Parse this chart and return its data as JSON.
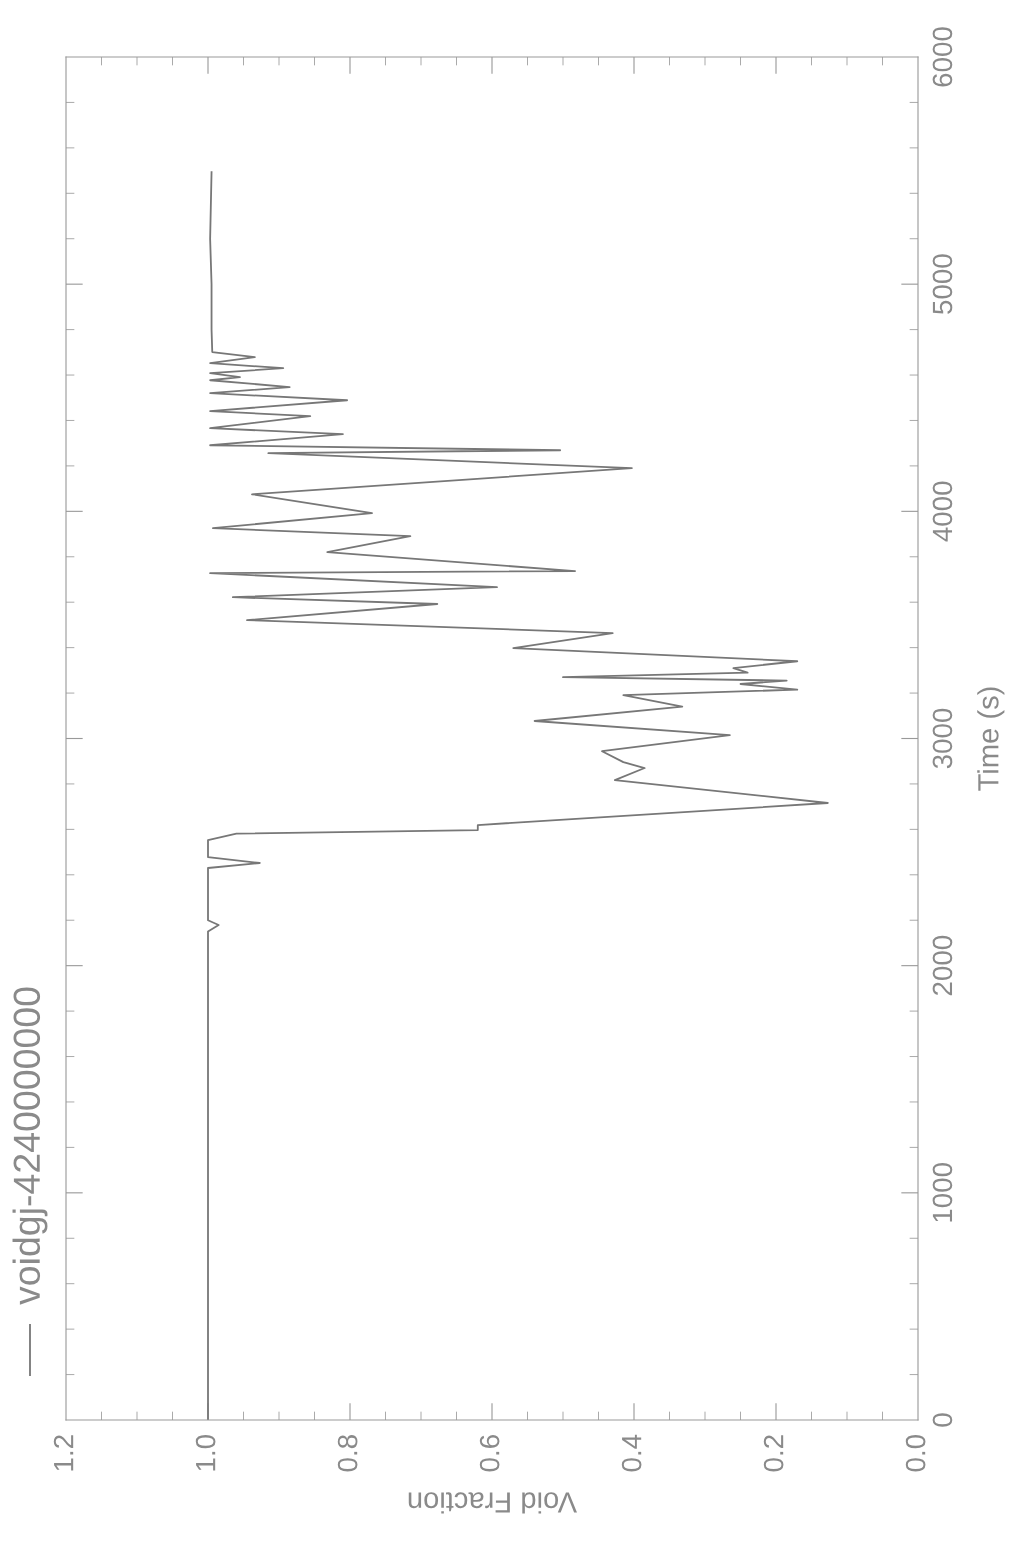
{
  "chart_data": {
    "type": "line",
    "xlabel": "Void Fraction",
    "ylabel": "Time (s)",
    "xlim": [
      1.2,
      0
    ],
    "xticks": [
      1.2,
      {
        "value": 1,
        "label": "1.0"
      },
      0.8,
      0.6,
      0.4,
      0.2,
      {
        "value": 0,
        "label": "0.0"
      }
    ],
    "ylim": [
      0,
      6000
    ],
    "yticks": [
      0,
      1000,
      2000,
      3000,
      4000,
      5000,
      6000
    ],
    "legend": "bottom left",
    "grid": false,
    "marker": "none",
    "line_style": "solid",
    "series": [
      {
        "name": "voidgj-4240000000",
        "color": "#777777",
        "values": [
          0,
          2150,
          2179,
          2200,
          2430,
          2452,
          2478,
          2553,
          2581,
          2597,
          2619,
          2716,
          2817,
          2870,
          2896,
          2944,
          3015,
          3077,
          3140,
          3191,
          3215,
          3240,
          3255,
          3270,
          3290,
          3310,
          3340,
          3398,
          3464,
          3521,
          3592,
          3622,
          3666,
          3728,
          3737,
          3820,
          3891,
          3926,
          3992,
          4075,
          4190,
          4256,
          4269,
          4291,
          4340,
          4366,
          4419,
          4441,
          4489,
          4520,
          4547,
          4577,
          4591,
          4608,
          4630,
          4652,
          4679,
          4701,
          4800,
          5000,
          5200,
          5493
        ],
        "x": [
          1.0,
          1.0,
          0.985,
          1.0,
          1.0,
          0.927,
          1.0,
          1.0,
          0.96,
          0.62,
          0.62,
          0.127,
          0.427,
          0.385,
          0.415,
          0.445,
          0.265,
          0.54,
          0.332,
          0.415,
          0.17,
          0.25,
          0.185,
          0.5,
          0.24,
          0.26,
          0.17,
          0.57,
          0.43,
          0.945,
          0.677,
          0.965,
          0.593,
          0.997,
          0.483,
          0.832,
          0.715,
          0.993,
          0.769,
          0.938,
          0.403,
          0.915,
          0.504,
          0.997,
          0.81,
          0.997,
          0.856,
          0.997,
          0.804,
          0.997,
          0.885,
          0.997,
          0.955,
          0.997,
          0.894,
          0.997,
          0.934,
          0.994,
          0.995,
          0.995,
          0.997,
          0.995
        ]
      }
    ]
  }
}
